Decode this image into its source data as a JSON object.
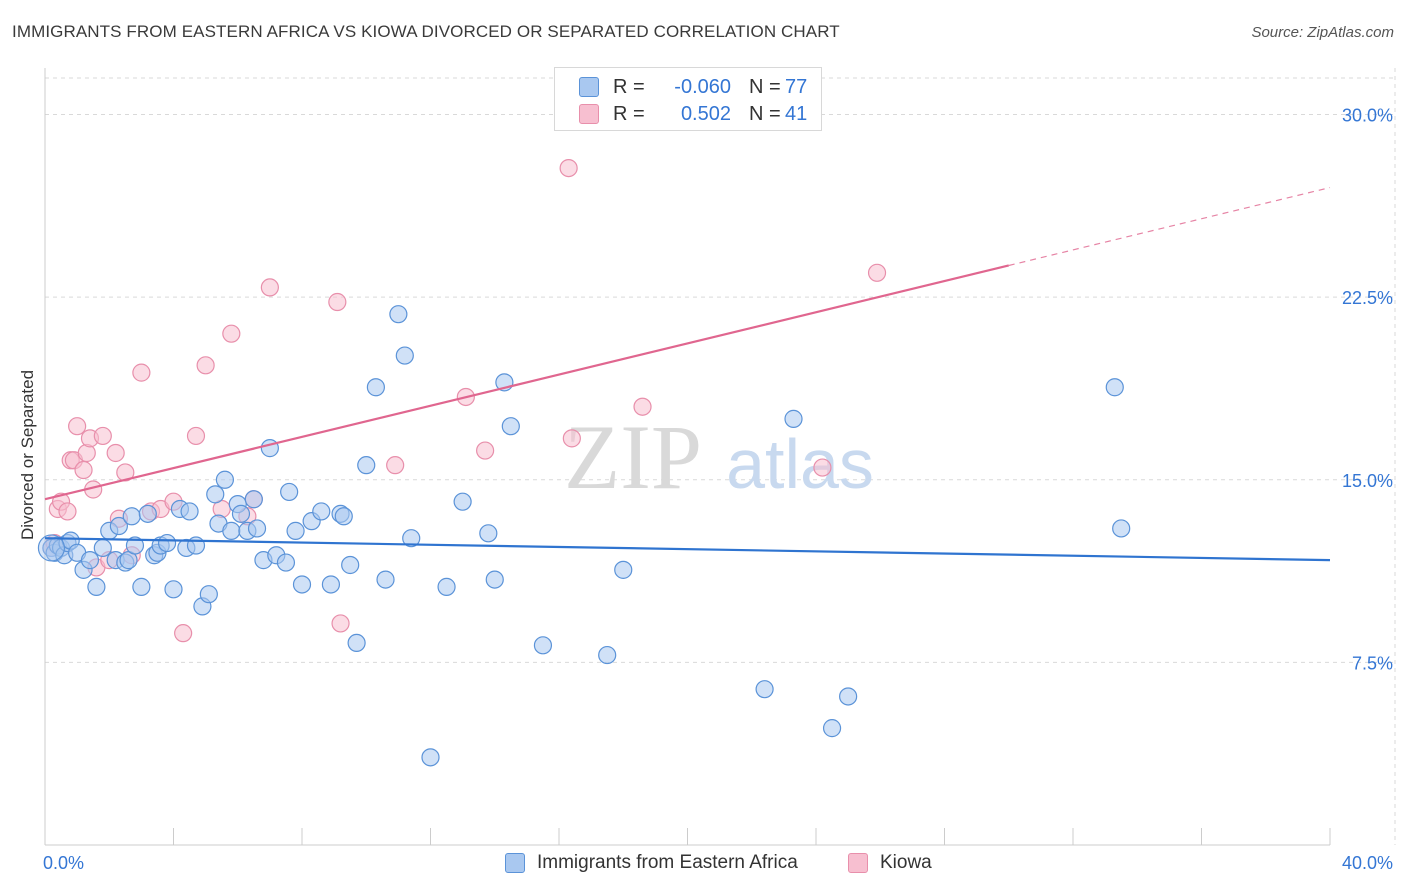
{
  "title": "IMMIGRANTS FROM EASTERN AFRICA VS KIOWA DIVORCED OR SEPARATED CORRELATION CHART",
  "source": "Source: ZipAtlas.com",
  "watermark": {
    "zip": "ZIP",
    "atlas": "atlas"
  },
  "legend_top": [
    {
      "r_label": "R =",
      "r_value": "-0.060",
      "n_label": "N =",
      "n_value": "77"
    },
    {
      "r_label": "R =",
      "r_value": "0.502",
      "n_label": "N =",
      "n_value": "41"
    }
  ],
  "legend_bottom": [
    "Immigrants from Eastern Africa",
    "Kiowa"
  ],
  "colors": {
    "blue_fill": "#a9c8f0",
    "blue_stroke": "#5b93d8",
    "blue_line": "#2f74d0",
    "pink_fill": "#f7bfd0",
    "pink_stroke": "#e88fab",
    "pink_line": "#e0668f",
    "tick_label": "#3476d4",
    "grid": "#d9d9d9"
  },
  "chart_data": {
    "type": "scatter",
    "title": "IMMIGRANTS FROM EASTERN AFRICA VS KIOWA DIVORCED OR SEPARATED CORRELATION CHART",
    "xlabel": "",
    "ylabel": "Divorced or Separated",
    "xlim": [
      0,
      40
    ],
    "ylim": [
      0,
      31.5
    ],
    "x_tick_labels": [
      "0.0%",
      "40.0%"
    ],
    "y_ticks": [
      7.5,
      15.0,
      22.5,
      30.0
    ],
    "y_tick_labels": [
      "7.5%",
      "15.0%",
      "22.5%",
      "30.0%"
    ],
    "grid": true,
    "legend_position": "top-center",
    "series": [
      {
        "name": "Immigrants from Eastern Africa",
        "color": "#5b93d8",
        "x": [
          0.2,
          0.3,
          0.4,
          0.5,
          0.6,
          0.7,
          0.8,
          1.0,
          1.2,
          1.4,
          1.6,
          1.8,
          2.0,
          2.2,
          2.3,
          2.5,
          2.6,
          2.7,
          2.8,
          3.0,
          3.2,
          3.4,
          3.5,
          3.6,
          3.8,
          4.0,
          4.2,
          4.4,
          4.5,
          4.7,
          4.9,
          5.1,
          5.3,
          5.4,
          5.6,
          5.8,
          6.0,
          6.1,
          6.3,
          6.5,
          6.6,
          6.8,
          7.0,
          7.2,
          7.5,
          7.6,
          7.8,
          8.0,
          8.3,
          8.6,
          8.9,
          9.2,
          9.3,
          9.5,
          9.7,
          10.0,
          10.3,
          10.6,
          11.0,
          11.2,
          11.4,
          12.0,
          12.5,
          13.0,
          13.8,
          14.0,
          14.3,
          14.5,
          15.5,
          17.5,
          18.0,
          22.4,
          23.3,
          24.5,
          25.0,
          33.3,
          33.5
        ],
        "y": [
          12.2,
          12.0,
          12.3,
          12.2,
          11.9,
          12.4,
          12.5,
          12.0,
          11.3,
          11.7,
          10.6,
          12.2,
          12.9,
          11.7,
          13.1,
          11.6,
          11.7,
          13.5,
          12.3,
          10.6,
          13.6,
          11.9,
          12.0,
          12.3,
          12.4,
          10.5,
          13.8,
          12.2,
          13.7,
          12.3,
          9.8,
          10.3,
          14.4,
          13.2,
          15.0,
          12.9,
          14.0,
          13.6,
          12.9,
          14.2,
          13.0,
          11.7,
          16.3,
          11.9,
          11.6,
          14.5,
          12.9,
          10.7,
          13.3,
          13.7,
          10.7,
          13.6,
          13.5,
          11.5,
          8.3,
          15.6,
          18.8,
          10.9,
          21.8,
          20.1,
          12.6,
          3.6,
          10.6,
          14.1,
          12.8,
          10.9,
          19.0,
          17.2,
          8.2,
          7.8,
          11.3,
          6.4,
          17.5,
          4.8,
          6.1,
          18.8,
          13.0
        ],
        "trend": {
          "x": [
            0,
            40
          ],
          "y": [
            12.6,
            11.7
          ]
        }
      },
      {
        "name": "Kiowa",
        "color": "#e88fab",
        "x": [
          0.2,
          0.3,
          0.4,
          0.5,
          0.7,
          0.8,
          0.9,
          1.0,
          1.2,
          1.3,
          1.4,
          1.5,
          1.6,
          1.8,
          2.0,
          2.2,
          2.3,
          2.5,
          2.7,
          3.0,
          3.3,
          3.6,
          4.0,
          4.3,
          4.7,
          5.0,
          5.5,
          5.8,
          6.3,
          6.5,
          7.0,
          9.1,
          9.2,
          10.9,
          13.1,
          13.7,
          16.3,
          16.4,
          18.6,
          24.2,
          25.9
        ],
        "y": [
          12.2,
          12.4,
          13.8,
          14.1,
          13.7,
          15.8,
          15.8,
          17.2,
          15.4,
          16.1,
          16.7,
          14.6,
          11.4,
          16.8,
          11.7,
          16.1,
          13.4,
          15.3,
          11.9,
          19.4,
          13.7,
          13.8,
          14.1,
          8.7,
          16.8,
          19.7,
          13.8,
          21.0,
          13.5,
          14.2,
          22.9,
          22.3,
          9.1,
          15.6,
          18.4,
          16.2,
          27.8,
          16.7,
          18.0,
          15.5,
          23.5
        ],
        "trend": {
          "x": [
            0,
            30
          ],
          "y": [
            14.2,
            23.8
          ]
        },
        "trend_extension": {
          "x": [
            30,
            40
          ],
          "y": [
            23.8,
            27.0
          ]
        }
      }
    ]
  }
}
